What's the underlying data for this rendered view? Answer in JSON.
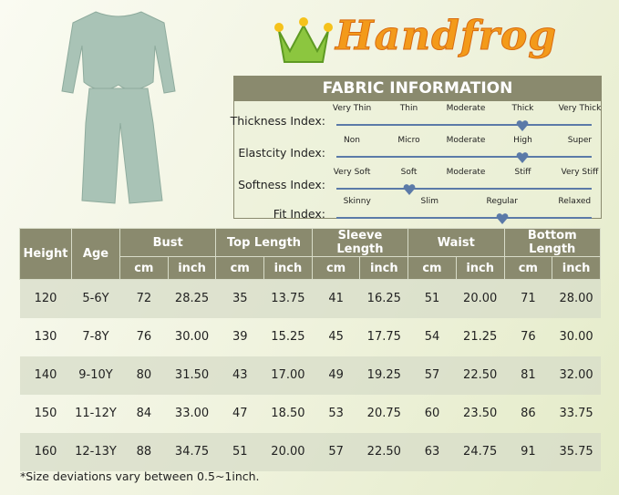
{
  "brand": {
    "name": "Handfrog",
    "colors": {
      "text": "#f39a1a",
      "crown": "#8cc63f"
    }
  },
  "product_image": {
    "description_icon": "green-top-and-pants",
    "color": "#a9c3b6"
  },
  "fabric": {
    "title": "FABRIC INFORMATION",
    "accent": "#5b7aa8",
    "indexes": [
      {
        "label": "Thickness Index:",
        "options": [
          "Very Thin",
          "Thin",
          "Moderate",
          "Thick",
          "Very Thick"
        ],
        "selected": "Thick"
      },
      {
        "label": "Elastcity Index:",
        "options": [
          "Non",
          "Micro",
          "Moderate",
          "High",
          "Super"
        ],
        "selected": "High"
      },
      {
        "label": "Softness Index:",
        "options": [
          "Very Soft",
          "Soft",
          "Moderate",
          "Stiff",
          "Very Stiff"
        ],
        "selected": "Soft"
      },
      {
        "label": "Fit Index:",
        "options": [
          "Skinny",
          "Slim",
          "Regular",
          "Relaxed"
        ],
        "selected": "Regular"
      }
    ]
  },
  "table": {
    "header_color": "#8a8a6e",
    "groups": [
      "Height",
      "Age",
      "Bust",
      "Top Length",
      "Sleeve Length",
      "Waist",
      "Bottom Length"
    ],
    "units": [
      "cm",
      "inch",
      "cm",
      "inch",
      "cm",
      "inch",
      "cm",
      "inch",
      "cm",
      "inch"
    ],
    "rows": [
      [
        "120",
        "5-6Y",
        "72",
        "28.25",
        "35",
        "13.75",
        "41",
        "16.25",
        "51",
        "20.00",
        "71",
        "28.00"
      ],
      [
        "130",
        "7-8Y",
        "76",
        "30.00",
        "39",
        "15.25",
        "45",
        "17.75",
        "54",
        "21.25",
        "76",
        "30.00"
      ],
      [
        "140",
        "9-10Y",
        "80",
        "31.50",
        "43",
        "17.00",
        "49",
        "19.25",
        "57",
        "22.50",
        "81",
        "32.00"
      ],
      [
        "150",
        "11-12Y",
        "84",
        "33.00",
        "47",
        "18.50",
        "53",
        "20.75",
        "60",
        "23.50",
        "86",
        "33.75"
      ],
      [
        "160",
        "12-13Y",
        "88",
        "34.75",
        "51",
        "20.00",
        "57",
        "22.50",
        "63",
        "24.75",
        "91",
        "35.75"
      ]
    ]
  },
  "note": "*Size deviations vary between 0.5~1inch."
}
